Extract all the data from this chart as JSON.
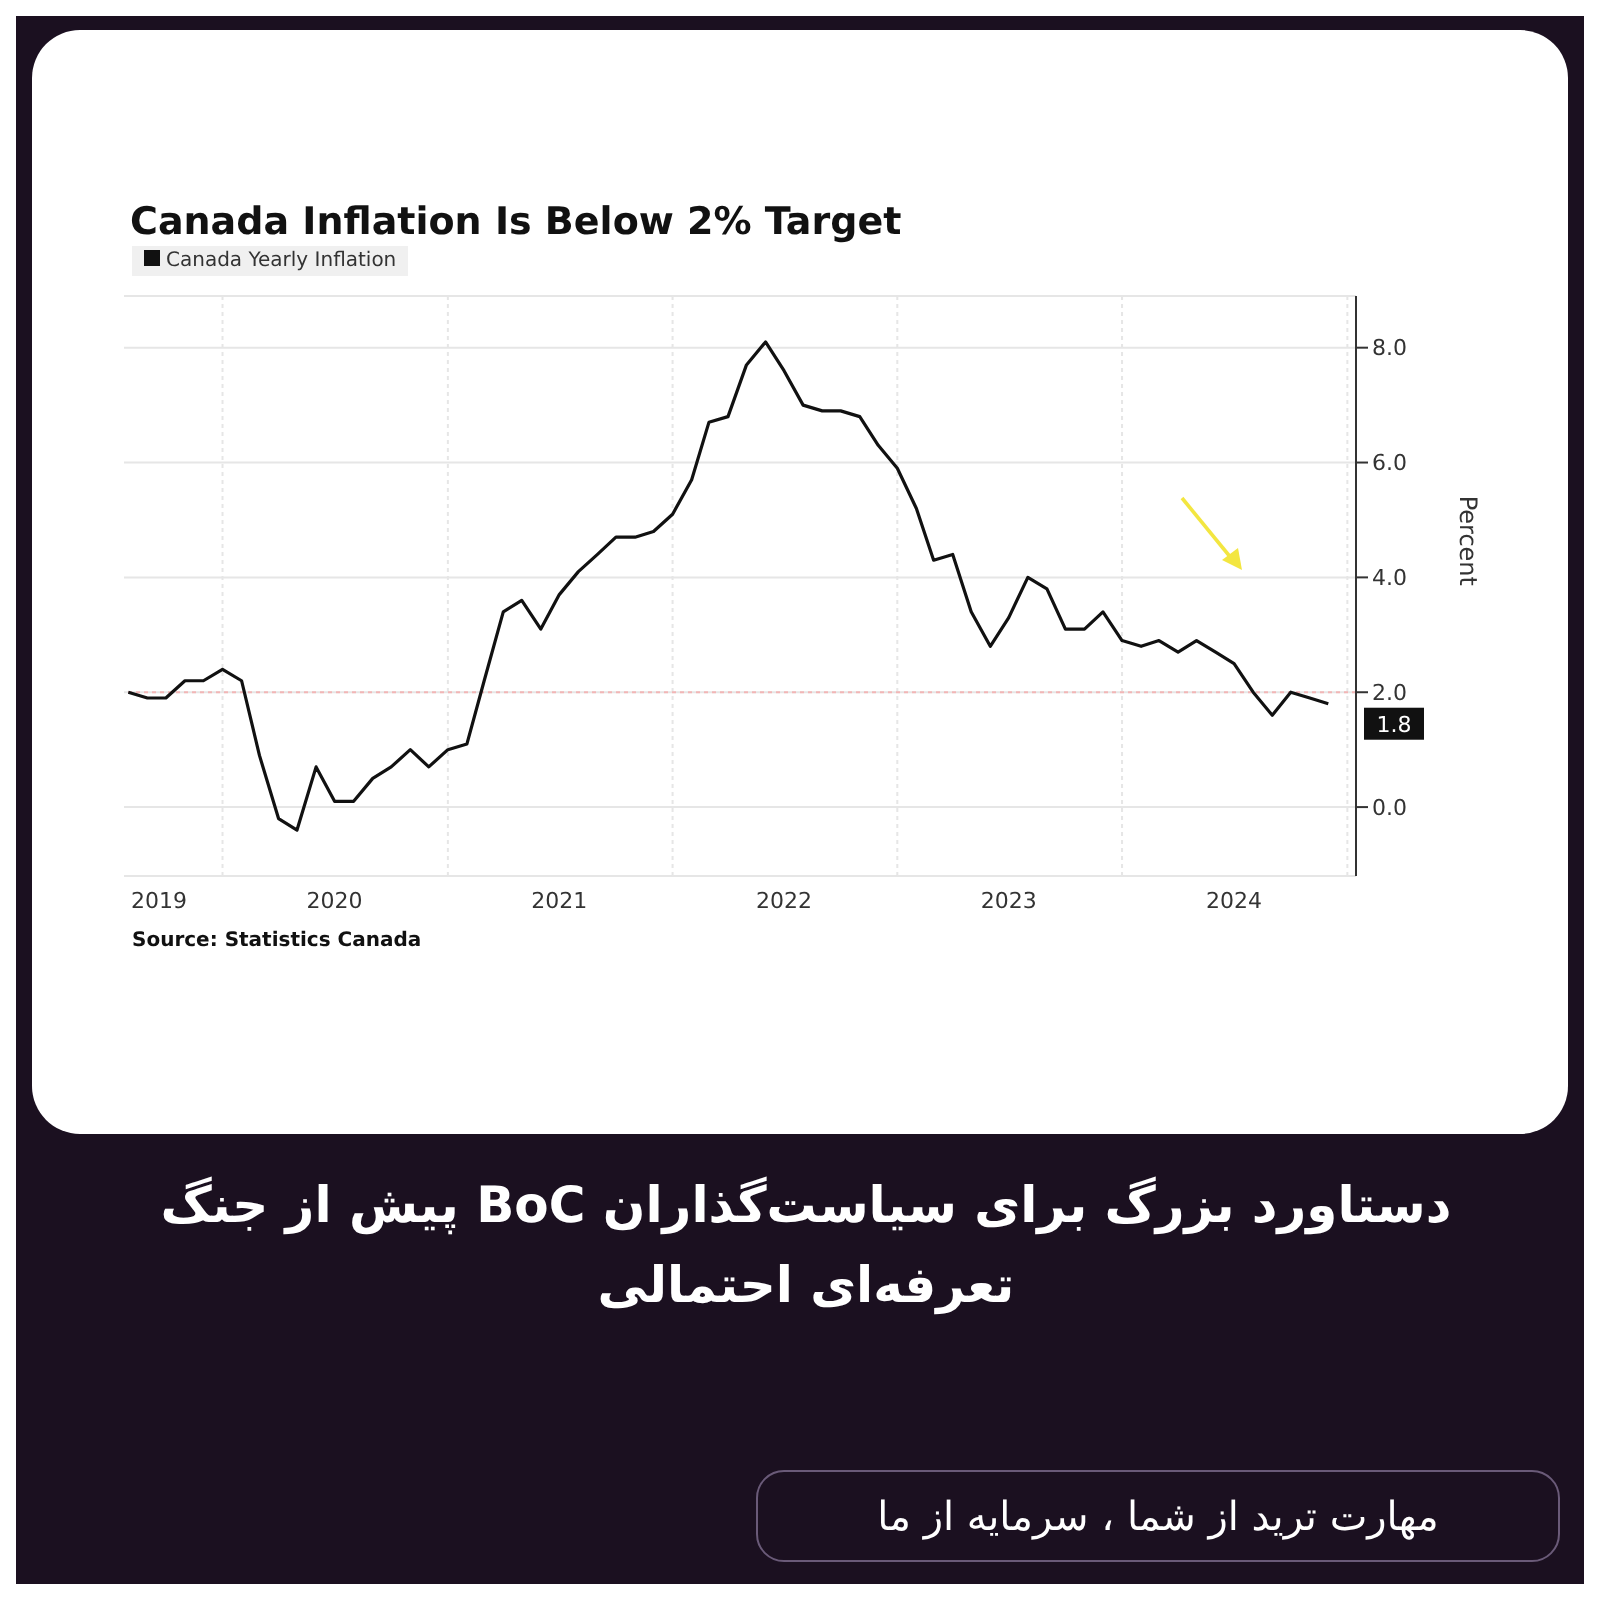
{
  "chart_data": {
    "type": "line",
    "title": "Canada Inflation Is Below 2% Target",
    "ylabel": "Percent",
    "x": [
      "2019-08",
      "2019-09",
      "2019-10",
      "2019-11",
      "2019-12",
      "2020-01",
      "2020-02",
      "2020-03",
      "2020-04",
      "2020-05",
      "2020-06",
      "2020-07",
      "2020-08",
      "2020-09",
      "2020-10",
      "2020-11",
      "2020-12",
      "2021-01",
      "2021-02",
      "2021-03",
      "2021-04",
      "2021-05",
      "2021-06",
      "2021-07",
      "2021-08",
      "2021-09",
      "2021-10",
      "2021-11",
      "2021-12",
      "2022-01",
      "2022-02",
      "2022-03",
      "2022-04",
      "2022-05",
      "2022-06",
      "2022-07",
      "2022-08",
      "2022-09",
      "2022-10",
      "2022-11",
      "2022-12",
      "2023-01",
      "2023-02",
      "2023-03",
      "2023-04",
      "2023-05",
      "2023-06",
      "2023-07",
      "2023-08",
      "2023-09",
      "2023-10",
      "2023-11",
      "2023-12",
      "2024-01",
      "2024-02",
      "2024-03",
      "2024-04",
      "2024-05",
      "2024-06",
      "2024-07",
      "2024-08",
      "2024-09",
      "2024-10",
      "2024-11",
      "2024-12"
    ],
    "series": [
      {
        "name": "Canada Yearly Inflation",
        "color": "#111111",
        "values": [
          2.0,
          1.9,
          1.9,
          2.2,
          2.2,
          2.4,
          2.2,
          0.9,
          -0.2,
          -0.4,
          0.7,
          0.1,
          0.1,
          0.5,
          0.7,
          1.0,
          0.7,
          1.0,
          1.1,
          2.2,
          3.4,
          3.6,
          3.1,
          3.7,
          4.1,
          4.4,
          4.7,
          4.7,
          4.8,
          5.1,
          5.7,
          6.7,
          6.8,
          7.7,
          8.1,
          7.6,
          7.0,
          6.9,
          6.9,
          6.8,
          6.3,
          5.9,
          5.2,
          4.3,
          4.4,
          3.4,
          2.8,
          3.3,
          4.0,
          3.8,
          3.1,
          3.1,
          3.4,
          2.9,
          2.8,
          2.9,
          2.7,
          2.9,
          2.7,
          2.5,
          2.0,
          1.6,
          2.0,
          1.9,
          1.8
        ]
      }
    ],
    "xlim": [
      "2019-07-25",
      "2025-01-15"
    ],
    "xticks": [
      {
        "value": "2019-09-20",
        "label": "2019"
      },
      {
        "value": "2020-01-01",
        "label": null
      },
      {
        "value": "2020-07-01",
        "label": "2020"
      },
      {
        "value": "2021-01-01",
        "label": null
      },
      {
        "value": "2021-07-01",
        "label": "2021"
      },
      {
        "value": "2022-01-01",
        "label": null
      },
      {
        "value": "2022-07-01",
        "label": "2022"
      },
      {
        "value": "2023-01-01",
        "label": null
      },
      {
        "value": "2023-07-01",
        "label": "2023"
      },
      {
        "value": "2024-01-01",
        "label": null
      },
      {
        "value": "2024-07-01",
        "label": "2024"
      },
      {
        "value": "2025-01-01",
        "label": null
      }
    ],
    "ylim": [
      -1.2,
      8.9
    ],
    "yticks": [
      {
        "value": 0,
        "label": "0.0"
      },
      {
        "value": 2,
        "label": "2.0"
      },
      {
        "value": 4,
        "label": "4.0"
      },
      {
        "value": 6,
        "label": "6.0"
      },
      {
        "value": 8,
        "label": "8.0"
      }
    ],
    "ref_lines": [
      {
        "axis": "y",
        "value": 2,
        "color": "#f2b6b6",
        "line_style": "dotted"
      }
    ],
    "grid": true,
    "legend": "top left",
    "marker": "none",
    "line_style": "solid",
    "annotations": [
      {
        "text": "1.8",
        "x": "2024-12",
        "y": 1.8
      },
      "Source: Statistics Canada",
      "دستاورد بزرگ برای سیاست‌گذاران BoC پیش از جنگ تعرفه‌ای احتمالی",
      "مهارت ترید از شما ، سرمایه از ما"
    ]
  }
}
